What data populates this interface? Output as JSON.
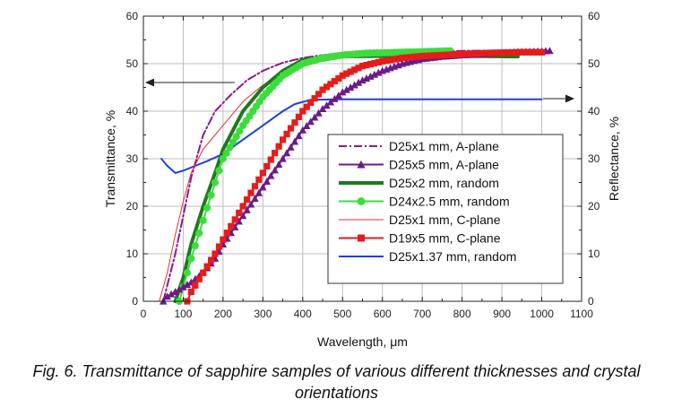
{
  "chart_data": {
    "type": "line",
    "title": "",
    "xlabel": "Wavelength, μm",
    "ylabel": "Transmittance, %",
    "y2label": "Reflectance, %",
    "xlim": [
      0,
      1100
    ],
    "ylim": [
      0,
      60
    ],
    "y2lim": [
      0,
      60
    ],
    "xticks": [
      0,
      100,
      200,
      300,
      400,
      500,
      600,
      700,
      800,
      900,
      1000,
      1100
    ],
    "yticks": [
      0,
      10,
      20,
      30,
      40,
      50,
      60
    ],
    "grid": true,
    "legend_position": "bottom-right",
    "series": [
      {
        "name": "D25x1 mm, A-plane",
        "color": "#8B1A8B",
        "style": "dashdot",
        "marker": "none",
        "width": 2,
        "x": [
          50,
          80,
          100,
          120,
          150,
          180,
          220,
          260,
          300,
          350,
          400,
          450,
          500,
          600,
          700,
          800,
          900,
          1000
        ],
        "y": [
          0,
          10,
          18,
          26,
          35,
          40,
          43.5,
          46.5,
          48.5,
          50.2,
          51.2,
          51.8,
          52.1,
          52.3,
          52.5,
          52.7,
          52.8,
          52.8
        ]
      },
      {
        "name": "D25x5 mm, A-plane",
        "color": "#6A1B8A",
        "style": "solid",
        "marker": "triangle",
        "width": 2,
        "x": [
          50,
          60,
          80,
          100,
          120,
          150,
          180,
          200,
          250,
          300,
          350,
          400,
          450,
          500,
          550,
          600,
          650,
          700,
          750,
          800,
          850,
          900,
          950,
          1000,
          1020
        ],
        "y": [
          0,
          1,
          2,
          3,
          4,
          6,
          9,
          12,
          18,
          24,
          30,
          36,
          40.5,
          44,
          46.5,
          48.5,
          50,
          51,
          51.5,
          51.8,
          52,
          52.3,
          52.5,
          52.6,
          52.7
        ]
      },
      {
        "name": "D25x2 mm, random",
        "color": "#1C7A1C",
        "style": "solid",
        "marker": "none",
        "width": 4,
        "x": [
          80,
          100,
          120,
          150,
          180,
          200,
          250,
          300,
          350,
          400,
          450,
          500,
          600,
          700,
          800,
          940
        ],
        "y": [
          0,
          5,
          12,
          20,
          27,
          32,
          40,
          45,
          48.5,
          50.8,
          51.3,
          51.5,
          51.6,
          51.6,
          51.6,
          51.5
        ]
      },
      {
        "name": "D24x2.5 mm, random",
        "color": "#3DDC3D",
        "style": "solid",
        "marker": "circle",
        "width": 2,
        "x": [
          90,
          100,
          120,
          150,
          180,
          200,
          250,
          300,
          350,
          400,
          450,
          500,
          560,
          650,
          770
        ],
        "y": [
          0,
          3,
          9,
          17,
          25,
          30,
          37,
          43,
          47.5,
          50,
          51.2,
          51.8,
          52.2,
          52.4,
          52.7
        ]
      },
      {
        "name": "D25x1 mm, C-plane",
        "color": "#E03030",
        "style": "solid",
        "marker": "none",
        "width": 1,
        "x": [
          40,
          60,
          80,
          100,
          120,
          150,
          180,
          200,
          250,
          300,
          350,
          400,
          500,
          600,
          700,
          800,
          900,
          1000
        ],
        "y": [
          0,
          6,
          14,
          21,
          27,
          32,
          35,
          37,
          42,
          45.5,
          48,
          49.8,
          51.2,
          51.8,
          52.2,
          52.4,
          52.5,
          52.5
        ]
      },
      {
        "name": "D19x5 mm, C-plane",
        "color": "#E81B1B",
        "style": "solid",
        "marker": "square",
        "width": 2,
        "x": [
          110,
          120,
          150,
          180,
          200,
          250,
          300,
          350,
          400,
          450,
          500,
          550,
          600,
          650,
          700,
          750,
          800,
          850,
          900,
          950,
          1000
        ],
        "y": [
          0,
          2,
          6,
          10,
          13,
          20,
          27,
          34,
          40,
          44.5,
          47.5,
          49.5,
          50.5,
          51.2,
          51.6,
          51.8,
          52,
          52.2,
          52.3,
          52.4,
          52.4
        ]
      },
      {
        "name": "D25x1.37 mm, random",
        "color": "#1F3FE0",
        "style": "solid",
        "marker": "none",
        "width": 2,
        "axis": "right",
        "x": [
          45,
          60,
          80,
          100,
          130,
          160,
          200,
          250,
          300,
          350,
          380,
          420,
          500,
          600,
          700,
          800,
          900,
          1000
        ],
        "y": [
          30,
          28.5,
          27,
          27.5,
          28.5,
          29.5,
          31,
          34,
          37,
          40,
          41.5,
          42.4,
          42.5,
          42.5,
          42.5,
          42.5,
          42.5,
          42.5
        ]
      }
    ],
    "annotations": [
      {
        "type": "arrow",
        "direction": "left",
        "meaning": "Transmittance axis",
        "y": 46
      },
      {
        "type": "arrow",
        "direction": "right",
        "meaning": "Reflectance axis",
        "y": 42.5
      }
    ]
  },
  "caption": "Fig.  6. Transmittance of sapphire samples of various different thicknesses and crystal orientations"
}
